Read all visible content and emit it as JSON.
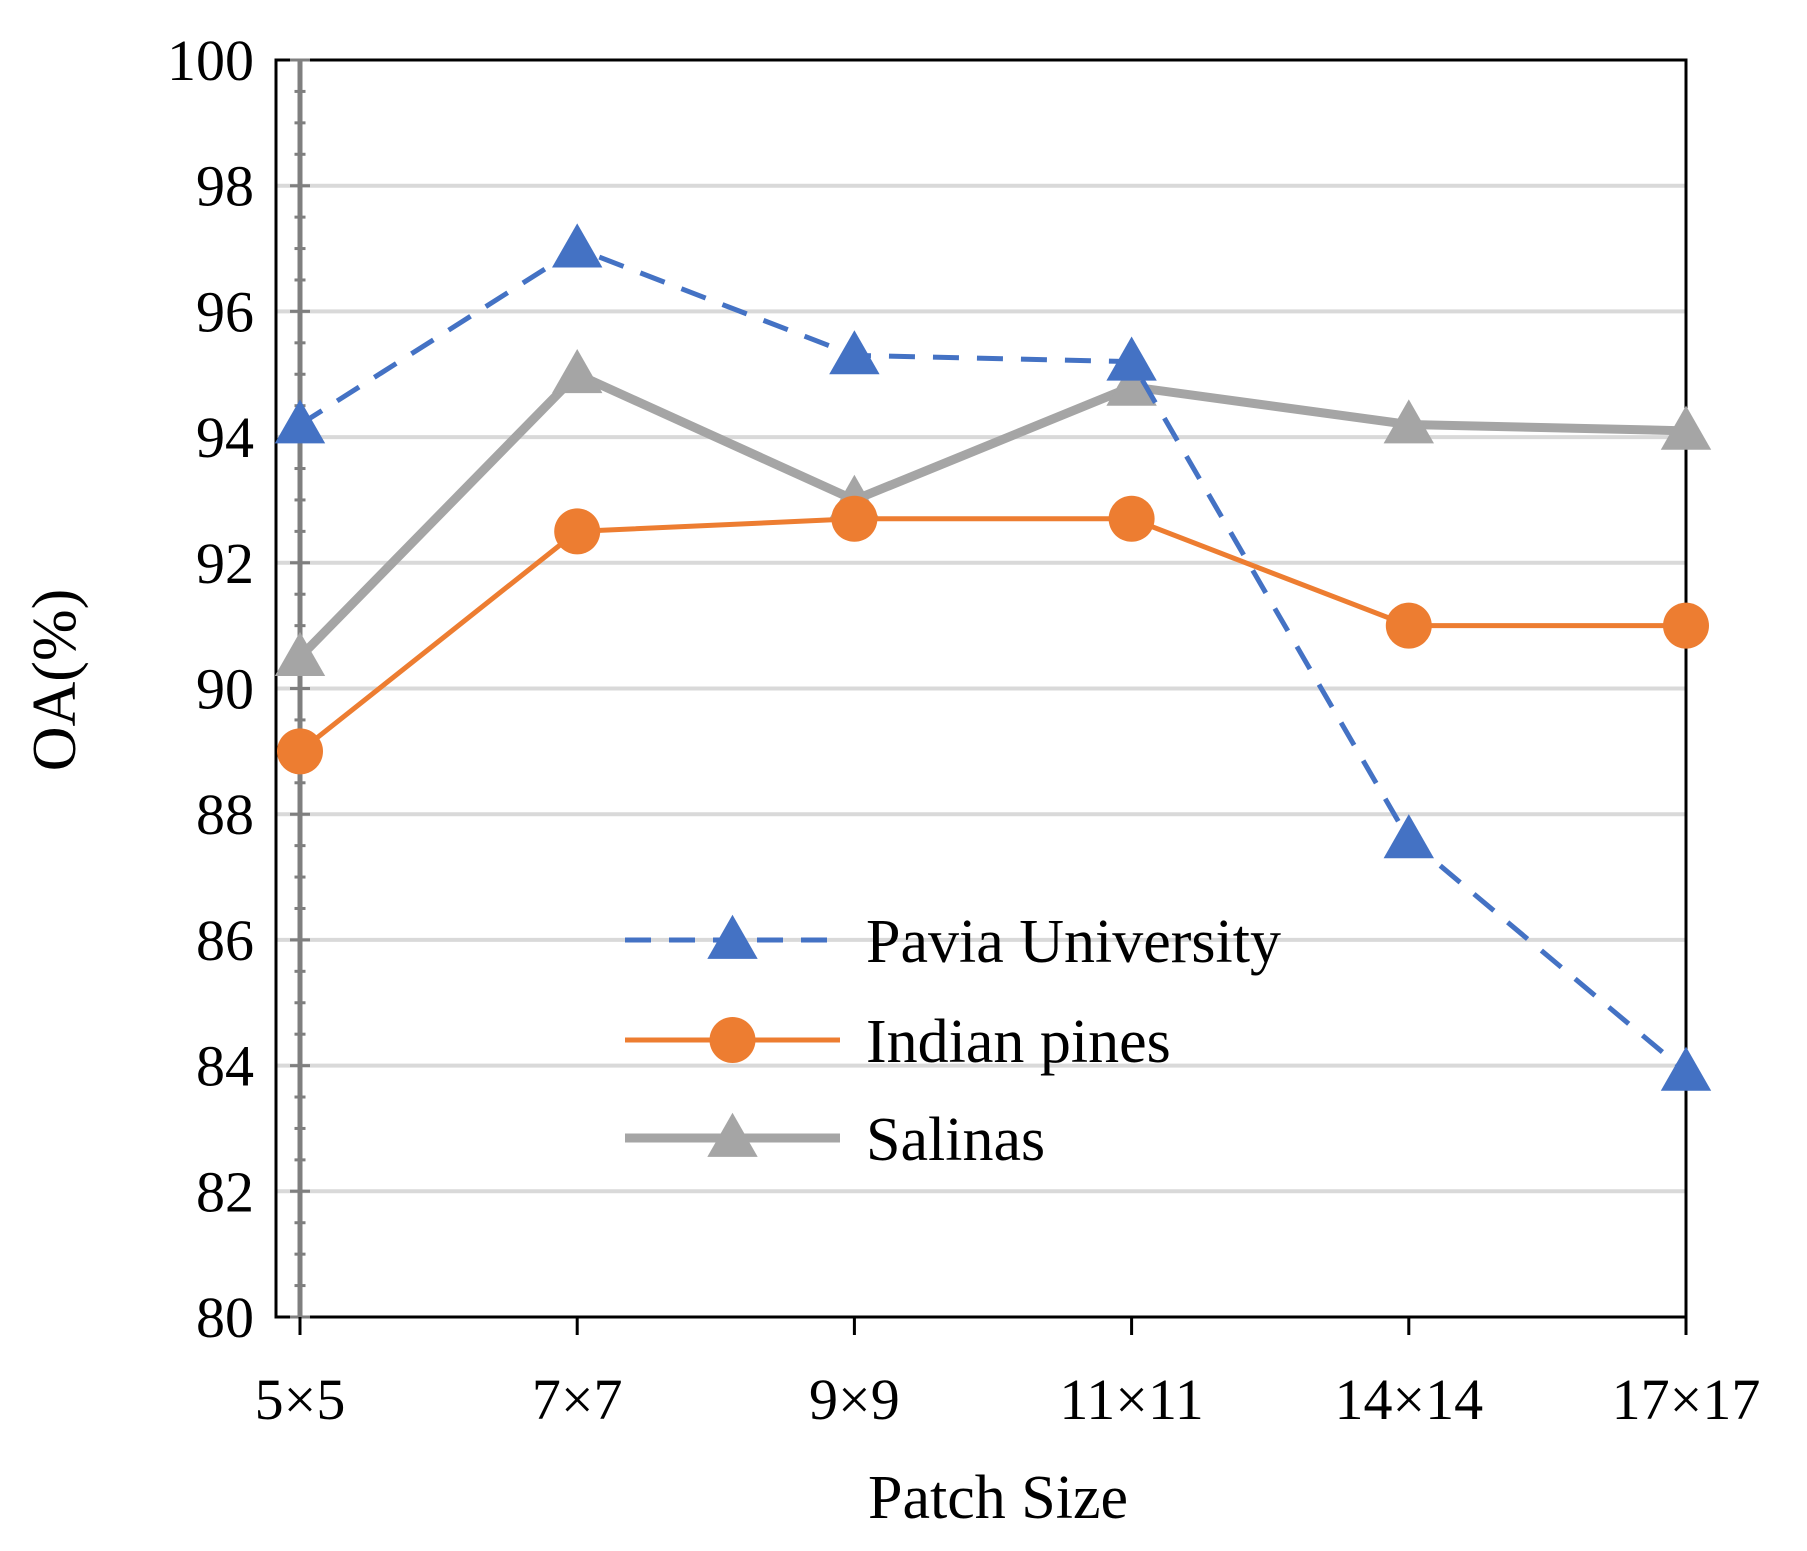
{
  "chart_data": {
    "type": "line",
    "title": "",
    "xlabel": "Patch Size",
    "ylabel": "OA(%)",
    "categories": [
      "5×5",
      "7×7",
      "9×9",
      "11×11",
      "14×14",
      "17×17"
    ],
    "ylim": [
      80,
      100
    ],
    "yticks": [
      80,
      82,
      84,
      86,
      88,
      90,
      92,
      94,
      96,
      98,
      100
    ],
    "ytick_labels": [
      "80",
      "82",
      "84",
      "86",
      "88",
      "90",
      "92",
      "94",
      "96",
      "98",
      "100"
    ],
    "grid": true,
    "legend_position": "lower-center",
    "series": [
      {
        "name": "Pavia University",
        "values": [
          94.2,
          97.0,
          95.3,
          95.2,
          87.6,
          83.9
        ],
        "color": "#4472C4",
        "dash": true,
        "marker": "triangle"
      },
      {
        "name": "Indian pines",
        "values": [
          89.0,
          92.5,
          92.7,
          92.7,
          91.0,
          91.0
        ],
        "color": "#ED7D31",
        "dash": false,
        "marker": "circle"
      },
      {
        "name": "Salinas",
        "values": [
          90.5,
          95.0,
          93.0,
          94.8,
          94.2,
          94.1
        ],
        "color": "#A5A5A5",
        "dash": false,
        "marker": "triangle"
      }
    ]
  }
}
